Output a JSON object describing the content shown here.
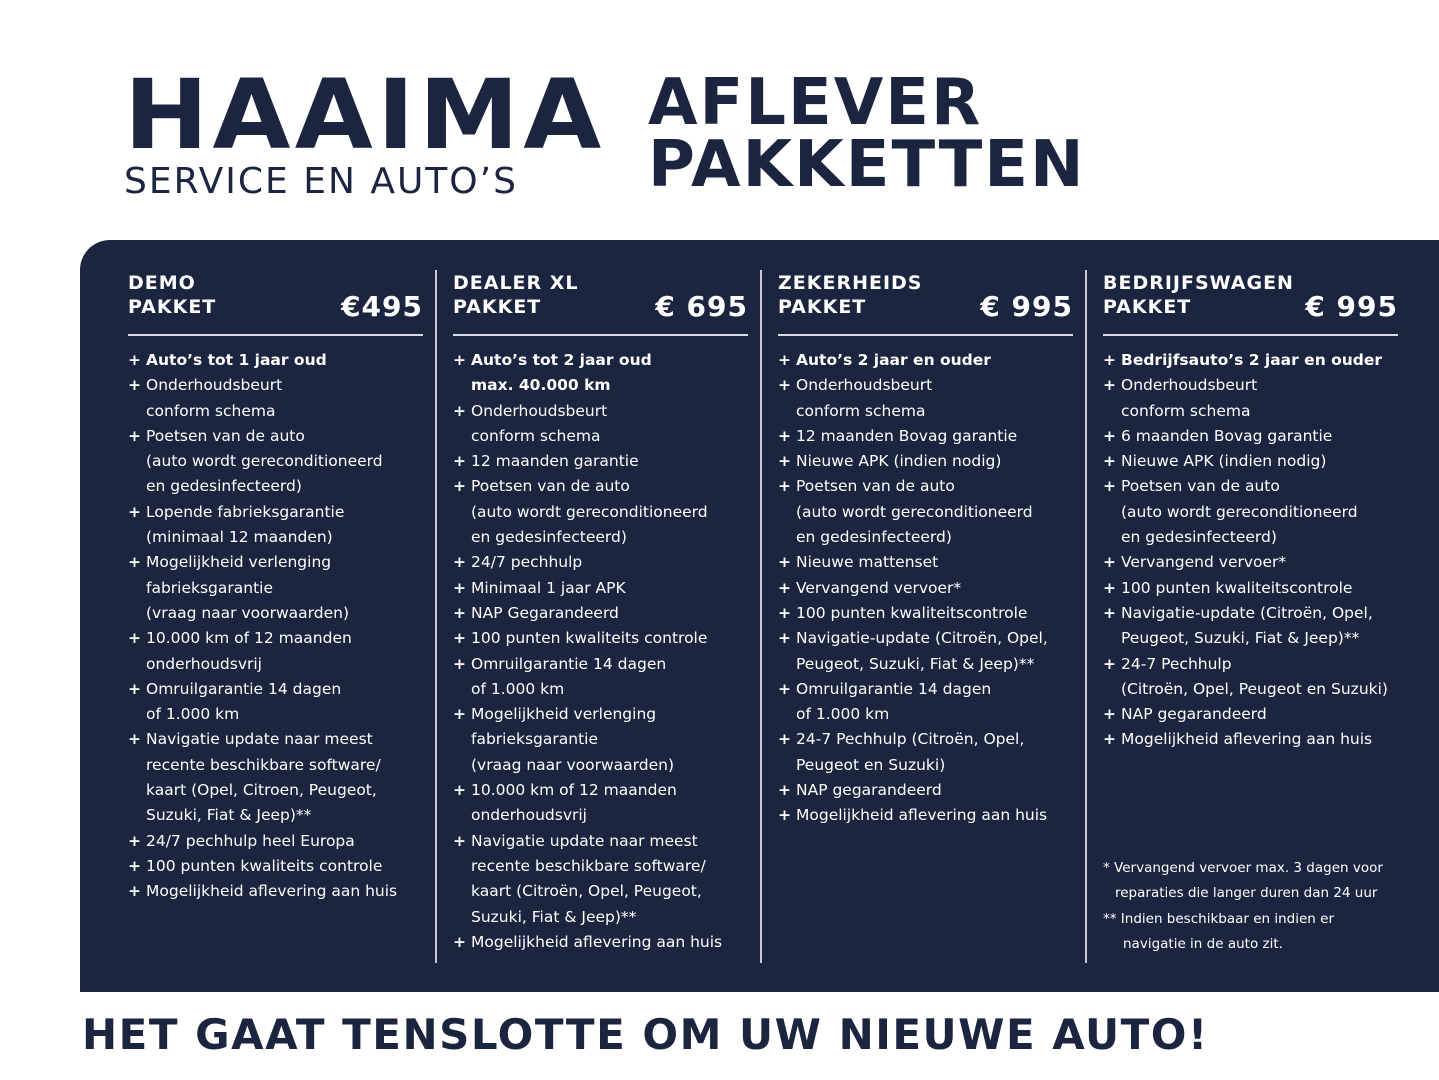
{
  "brand": {
    "name": "HAAIMA",
    "subtitle": "SERVICE EN AUTO’S"
  },
  "headline": {
    "line1": "AFLEVER",
    "line2": "PAKKETTEN"
  },
  "colors": {
    "navy": "#1c2540",
    "white": "#ffffff"
  },
  "packages": [
    {
      "title1": "DEMO",
      "title2": "PAKKET",
      "price": "€495",
      "items": [
        {
          "bold": true,
          "lines": [
            "Auto’s tot 1 jaar oud"
          ]
        },
        {
          "lines": [
            "Onderhoudsbeurt",
            "conform schema"
          ]
        },
        {
          "lines": [
            "Poetsen van de auto",
            "(auto wordt gereconditioneerd",
            "en gedesinfecteerd)"
          ]
        },
        {
          "lines": [
            "Lopende fabrieksgarantie",
            "(minimaal 12 maanden)"
          ]
        },
        {
          "lines": [
            "Mogelijkheid verlenging",
            "fabrieksgarantie",
            "(vraag naar voorwaarden)"
          ]
        },
        {
          "lines": [
            "10.000 km of 12 maanden",
            "onderhoudsvrij"
          ]
        },
        {
          "lines": [
            "Omruilgarantie 14 dagen",
            "of 1.000 km"
          ]
        },
        {
          "lines": [
            "Navigatie update naar meest",
            "recente beschikbare software/",
            "kaart (Opel, Citroen,  Peugeot,",
            "Suzuki, Fiat & Jeep)**"
          ]
        },
        {
          "lines": [
            "24/7 pechhulp heel Europa"
          ]
        },
        {
          "lines": [
            "100 punten kwaliteits controle"
          ]
        },
        {
          "lines": [
            "Mogelijkheid aflevering aan huis"
          ]
        }
      ]
    },
    {
      "title1": "DEALER XL",
      "title2": "PAKKET",
      "price": "€ 695",
      "items": [
        {
          "bold": true,
          "lines": [
            "Auto’s tot 2 jaar oud",
            "max. 40.000 km"
          ]
        },
        {
          "lines": [
            "Onderhoudsbeurt",
            "conform schema"
          ]
        },
        {
          "lines": [
            "12 maanden garantie"
          ]
        },
        {
          "lines": [
            "Poetsen van de auto",
            "(auto wordt gereconditioneerd",
            "en gedesinfecteerd)"
          ]
        },
        {
          "lines": [
            "24/7 pechhulp"
          ]
        },
        {
          "lines": [
            "Minimaal 1 jaar APK"
          ]
        },
        {
          "lines": [
            "NAP Gegarandeerd"
          ]
        },
        {
          "lines": [
            "100 punten kwaliteits controle"
          ]
        },
        {
          "lines": [
            "Omruilgarantie 14 dagen",
            "of 1.000 km"
          ]
        },
        {
          "lines": [
            "Mogelijkheid verlenging",
            "fabrieksgarantie",
            "(vraag naar voorwaarden)"
          ]
        },
        {
          "lines": [
            "10.000 km of 12 maanden",
            "onderhoudsvrij"
          ]
        },
        {
          "lines": [
            "Navigatie update naar meest",
            "recente beschikbare software/",
            "kaart (Citroën, Opel, Peugeot,",
            "Suzuki, Fiat & Jeep)**"
          ]
        },
        {
          "lines": [
            "Mogelijkheid aflevering aan huis"
          ]
        }
      ]
    },
    {
      "title1": "ZEKERHEIDS",
      "title2": "PAKKET",
      "price": "€ 995",
      "items": [
        {
          "bold": true,
          "lines": [
            "Auto’s 2 jaar en ouder"
          ]
        },
        {
          "lines": [
            "Onderhoudsbeurt",
            "conform schema"
          ]
        },
        {
          "lines": [
            "12 maanden Bovag garantie"
          ]
        },
        {
          "lines": [
            "Nieuwe APK (indien nodig)"
          ]
        },
        {
          "lines": [
            "Poetsen van de auto",
            "(auto wordt gereconditioneerd",
            "en gedesinfecteerd)"
          ]
        },
        {
          "lines": [
            "Nieuwe mattenset"
          ]
        },
        {
          "lines": [
            "Vervangend vervoer*"
          ]
        },
        {
          "lines": [
            "100 punten kwaliteitscontrole"
          ]
        },
        {
          "lines": [
            "Navigatie-update (Citroën, Opel,",
            "Peugeot, Suzuki, Fiat & Jeep)**"
          ]
        },
        {
          "lines": [
            "Omruilgarantie 14 dagen",
            "of 1.000 km"
          ]
        },
        {
          "lines": [
            "24-7 Pechhulp (Citroën, Opel,",
            "Peugeot en Suzuki)"
          ]
        },
        {
          "lines": [
            "NAP gegarandeerd"
          ]
        },
        {
          "lines": [
            "Mogelijkheid aflevering aan huis"
          ]
        }
      ]
    },
    {
      "title1": "BEDRIJFSWAGEN",
      "title2": "PAKKET",
      "price": "€ 995",
      "items": [
        {
          "bold": true,
          "lines": [
            "Bedrijfsauto’s 2 jaar en ouder"
          ]
        },
        {
          "lines": [
            "Onderhoudsbeurt",
            "conform schema"
          ]
        },
        {
          "lines": [
            "6 maanden Bovag garantie"
          ]
        },
        {
          "lines": [
            "Nieuwe APK (indien nodig)"
          ]
        },
        {
          "lines": [
            "Poetsen van de auto",
            "(auto wordt gereconditioneerd",
            "en gedesinfecteerd)"
          ]
        },
        {
          "lines": [
            "Vervangend vervoer*"
          ]
        },
        {
          "lines": [
            "100 punten kwaliteitscontrole"
          ]
        },
        {
          "lines": [
            "Navigatie-update (Citroën, Opel,",
            "Peugeot, Suzuki, Fiat & Jeep)**"
          ]
        },
        {
          "lines": [
            "24-7 Pechhulp",
            "(Citroën, Opel, Peugeot en Suzuki)"
          ]
        },
        {
          "lines": [
            "NAP gegarandeerd"
          ]
        },
        {
          "lines": [
            "Mogelijkheid aflevering aan huis"
          ]
        }
      ]
    }
  ],
  "bullet": "+",
  "footnotes": {
    "note1_line1": "* Vervangend vervoer max. 3 dagen voor",
    "note1_line2": "reparaties die langer duren dan 24 uur",
    "note2_line1": "** Indien beschikbaar en indien er",
    "note2_line2": "navigatie in de auto zit."
  },
  "tagline": "HET GAAT TENSLOTTE OM UW NIEUWE AUTO!"
}
